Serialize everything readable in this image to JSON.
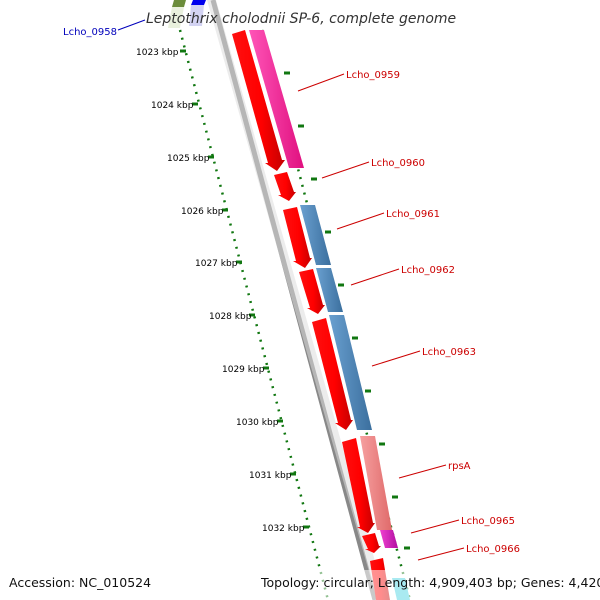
{
  "title": "Leptothrix cholodnii SP-6, complete genome",
  "footer": {
    "accession": "Accession: NC_010524",
    "topology": "Topology: circular; Length: 4,909,403 bp; Genes: 4,420"
  },
  "ticks": [
    "1023 kbp",
    "1024 kbp",
    "1025 kbp",
    "1026 kbp",
    "1027 kbp",
    "1028 kbp",
    "1029 kbp",
    "1030 kbp",
    "1031 kbp",
    "1032 kbp"
  ],
  "genes": [
    {
      "label": "Lcho_0958",
      "color": "#0000bb"
    },
    {
      "label": "Lcho_0959",
      "color": "#cc0000"
    },
    {
      "label": "Lcho_0960",
      "color": "#cc0000"
    },
    {
      "label": "Lcho_0961",
      "color": "#cc0000"
    },
    {
      "label": "Lcho_0962",
      "color": "#cc0000"
    },
    {
      "label": "Lcho_0963",
      "color": "#cc0000"
    },
    {
      "label": "rpsA",
      "color": "#cc0000"
    },
    {
      "label": "Lcho_0965",
      "color": "#cc0000"
    },
    {
      "label": "Lcho_0966",
      "color": "#cc0000"
    }
  ],
  "colors": {
    "cds": "#ff0000",
    "category_pink": "#ff2ea0",
    "category_blue": "#4f86b9",
    "category_salmon": "#f08080",
    "category_magenta": "#e020c0",
    "category_cyan": "#40d0e0",
    "backbone": "#888888",
    "tick_green": "#117711"
  }
}
